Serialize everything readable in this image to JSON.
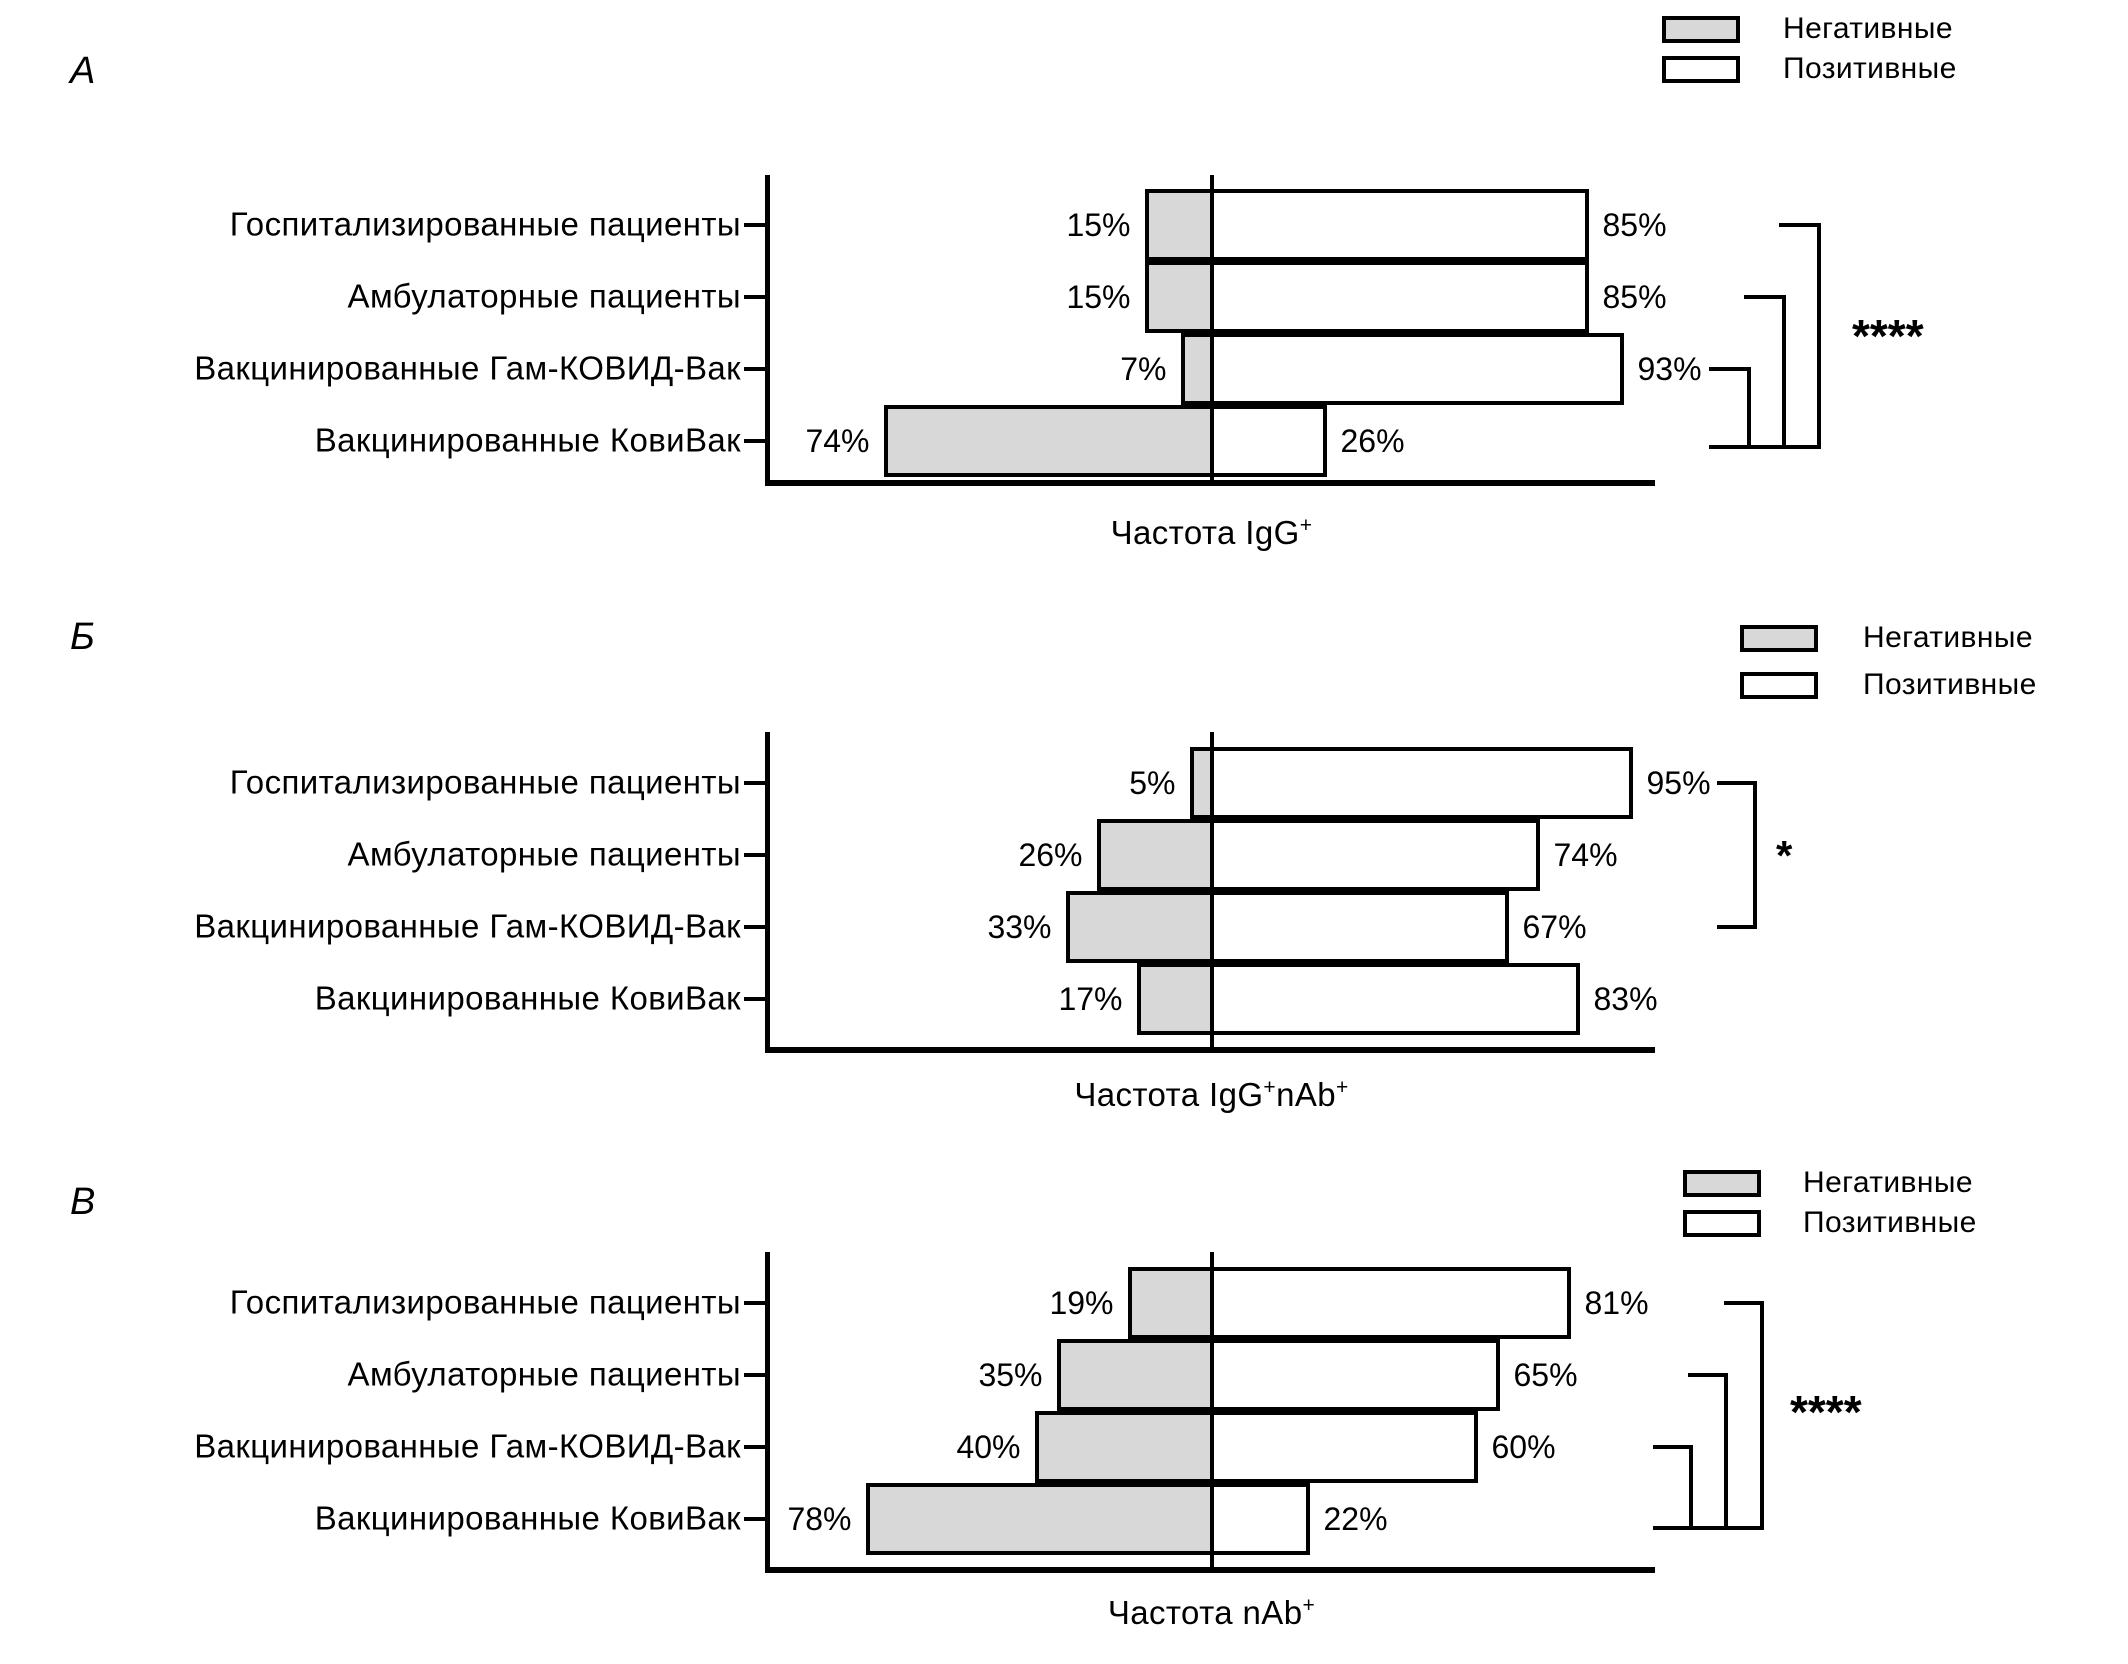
{
  "figure_title": "",
  "legend": {
    "negative": "Негативные",
    "positive": "Позитивные"
  },
  "value_suffix": "%",
  "chart_data": [
    {
      "type": "bar",
      "panel_letter": "А",
      "orientation": "horizontal-diverging",
      "xlim": [
        -100,
        100
      ],
      "categories": [
        "Госпитализированные пациенты",
        "Амбулаторные пациенты",
        "Вакцинированные Гам-КОВИД-Вак",
        "Вакцинированные КовиВак"
      ],
      "series": [
        {
          "name": "Негативные",
          "values": [
            15,
            15,
            7,
            74
          ]
        },
        {
          "name": "Позитивные",
          "values": [
            85,
            85,
            93,
            26
          ]
        }
      ],
      "xlabel_text": "Частота IgG+",
      "xlabel_segments": [
        {
          "text": "Частота IgG"
        },
        {
          "text": "+",
          "sup": true
        }
      ],
      "significance": {
        "label": "****",
        "between": [
          [
            0,
            3
          ],
          [
            1,
            3
          ],
          [
            2,
            3
          ]
        ]
      }
    },
    {
      "type": "bar",
      "panel_letter": "Б",
      "orientation": "horizontal-diverging",
      "xlim": [
        -100,
        100
      ],
      "categories": [
        "Госпитализированные пациенты",
        "Амбулаторные пациенты",
        "Вакцинированные Гам-КОВИД-Вак",
        "Вакцинированные КовиВак"
      ],
      "series": [
        {
          "name": "Негативные",
          "values": [
            5,
            26,
            33,
            17
          ]
        },
        {
          "name": "Позитивные",
          "values": [
            95,
            74,
            67,
            83
          ]
        }
      ],
      "xlabel_text": "Частота IgG+nAb+",
      "xlabel_segments": [
        {
          "text": "Частота IgG"
        },
        {
          "text": "+",
          "sup": true
        },
        {
          "text": "nAb"
        },
        {
          "text": "+",
          "sup": true
        }
      ],
      "significance": {
        "label": "*",
        "between": [
          [
            0,
            2
          ]
        ]
      }
    },
    {
      "type": "bar",
      "panel_letter": "В",
      "orientation": "horizontal-diverging",
      "xlim": [
        -100,
        100
      ],
      "categories": [
        "Госпитализированные пациенты",
        "Амбулаторные пациенты",
        "Вакцинированные Гам-КОВИД-Вак",
        "Вакцинированные КовиВак"
      ],
      "series": [
        {
          "name": "Негативные",
          "values": [
            19,
            35,
            40,
            78
          ]
        },
        {
          "name": "Позитивные",
          "values": [
            81,
            65,
            60,
            22
          ]
        }
      ],
      "xlabel_text": "Частота nAb+",
      "xlabel_segments": [
        {
          "text": "Частота nAb"
        },
        {
          "text": "+",
          "sup": true
        }
      ],
      "significance": {
        "label": "****",
        "between": [
          [
            0,
            3
          ],
          [
            1,
            3
          ],
          [
            2,
            3
          ]
        ]
      }
    }
  ]
}
